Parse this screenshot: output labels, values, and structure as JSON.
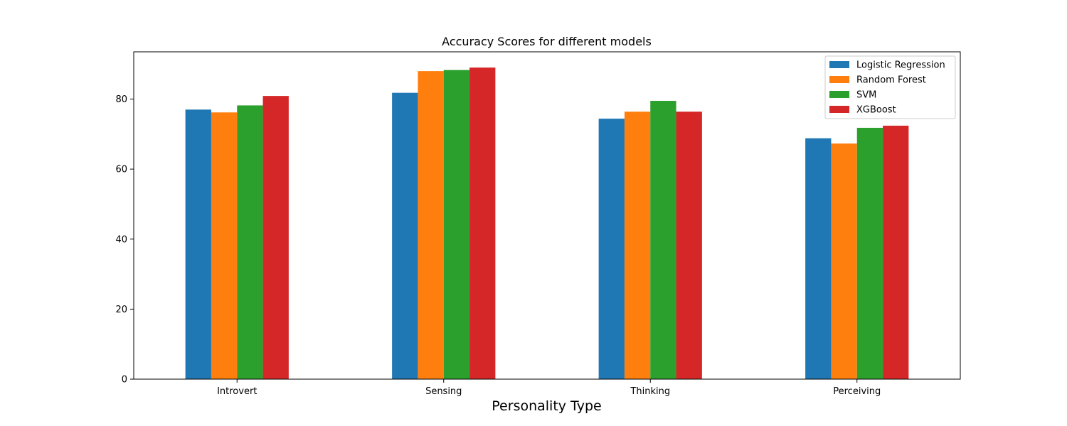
{
  "chart_data": {
    "type": "bar",
    "title": "Accuracy Scores for different models",
    "xlabel": "Personality Type",
    "ylabel": "",
    "categories": [
      "Introvert",
      "Sensing",
      "Thinking",
      "Perceiving"
    ],
    "series": [
      {
        "name": "Logistic Regression",
        "color": "#1f77b4",
        "values": [
          77.0,
          81.8,
          74.4,
          68.8
        ]
      },
      {
        "name": "Random Forest",
        "color": "#ff7f0e",
        "values": [
          76.2,
          88.0,
          76.4,
          67.3
        ]
      },
      {
        "name": "SVM",
        "color": "#2ca02c",
        "values": [
          78.2,
          88.3,
          79.5,
          71.8
        ]
      },
      {
        "name": "XGBoost",
        "color": "#d62728",
        "values": [
          80.9,
          89.0,
          76.4,
          72.4
        ]
      }
    ],
    "ylim": [
      0,
      93.5
    ],
    "yticks": [
      0,
      20,
      40,
      60,
      80
    ],
    "grid": false,
    "legend_position": "top-right"
  }
}
